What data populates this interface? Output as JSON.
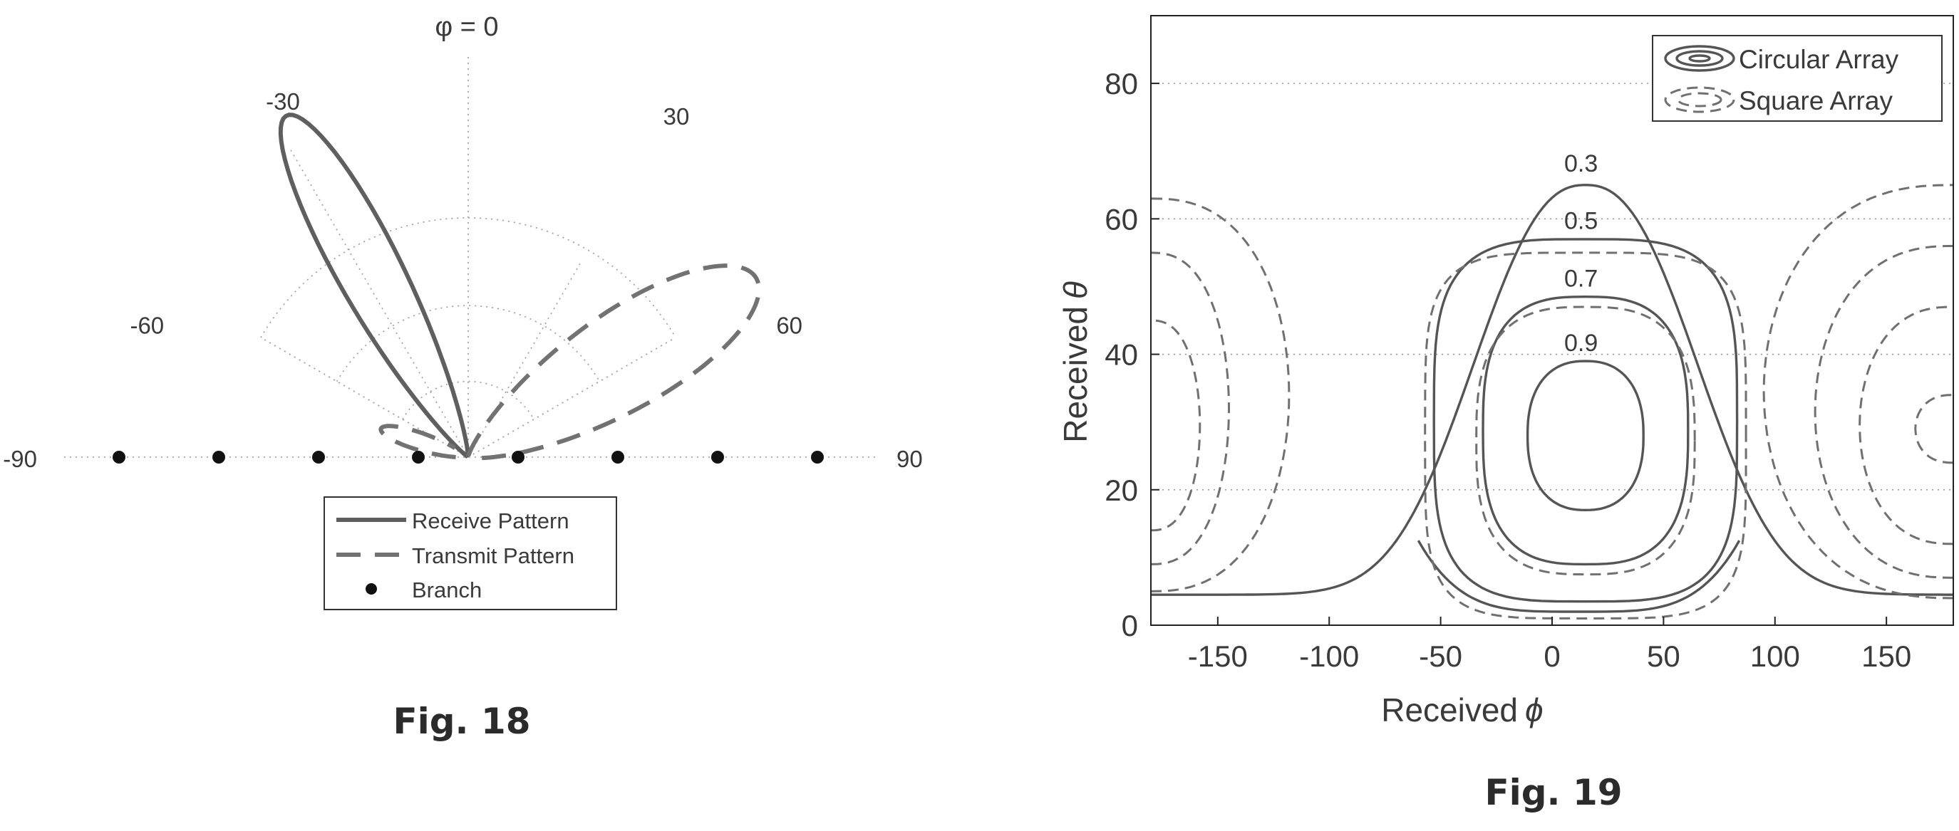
{
  "figures": {
    "fig18_caption": "Fig. 18",
    "fig19_caption": "Fig. 19"
  },
  "chart_data": [
    {
      "type": "polar",
      "title": "",
      "theta_label": "φ = 0",
      "angle_range": [
        -90,
        90
      ],
      "angle_ticks": [
        {
          "value": -90,
          "label": "-90"
        },
        {
          "value": -60,
          "label": "-60"
        },
        {
          "value": -30,
          "label": "-30"
        },
        {
          "value": 30,
          "label": "30"
        },
        {
          "value": 60,
          "label": "60"
        },
        {
          "value": 90,
          "label": "90"
        }
      ],
      "grid": true,
      "legend_position": "bottom-center",
      "series": [
        {
          "name": "Receive Pattern",
          "style": "solid",
          "peak_angle": -28,
          "peak_radius": 1.0,
          "beamwidth": 8
        },
        {
          "name": "Transmit Pattern",
          "style": "dashed",
          "peak_angle": 58,
          "peak_radius": 1.0,
          "beamwidth": 14,
          "sidelobe": {
            "angle": -72,
            "radius": 0.23
          }
        }
      ],
      "branches": {
        "name": "Branch",
        "x": [
          -0.875,
          -0.625,
          -0.375,
          -0.125,
          0.125,
          0.375,
          0.625,
          0.875
        ]
      }
    },
    {
      "type": "contour",
      "title": "",
      "xlabel": "Received",
      "ylabel": "Received",
      "xlabel_symbol": "ϕ",
      "ylabel_symbol": "θ",
      "xlim": [
        -180,
        180
      ],
      "ylim": [
        0,
        90
      ],
      "xticks": [
        -150,
        -100,
        -50,
        0,
        50,
        100,
        150
      ],
      "yticks": [
        0,
        20,
        40,
        60,
        80
      ],
      "grid": true,
      "legend_position": "top-right",
      "series": [
        {
          "name": "Circular Array",
          "style": "solid",
          "levels": [
            {
              "level": "0.3",
              "center": [
                15,
                30
              ],
              "x_halfwidth": 75,
              "y_range": [
                2,
                65
              ]
            },
            {
              "level": "0.5",
              "center": [
                15,
                30
              ],
              "x_halfwidth": 68,
              "y_range": [
                3.5,
                57
              ]
            },
            {
              "level": "0.7",
              "center": [
                15,
                28
              ],
              "x_halfwidth": 46,
              "y_range": [
                9,
                48.5
              ]
            },
            {
              "level": "0.9",
              "center": [
                15,
                28
              ],
              "x_halfwidth": 26,
              "y_range": [
                17,
                39
              ]
            }
          ]
        },
        {
          "name": "Square Array",
          "style": "dashed",
          "levels": [
            {
              "level": "0.3",
              "x_halfwidth": 70,
              "y_range": [
                1,
                54
              ]
            },
            {
              "level": "0.5",
              "x_halfwidth": 50,
              "y_range": [
                8,
                46
              ]
            }
          ],
          "side_lobes": [
            {
              "center": [
                -180,
                32
              ],
              "reach_x": [
                -118,
                -148,
                -158,
                -170
              ]
            },
            {
              "center": [
                180,
                30
              ],
              "reach_x": [
                95,
                120,
                140,
                165
              ]
            }
          ]
        }
      ]
    }
  ]
}
